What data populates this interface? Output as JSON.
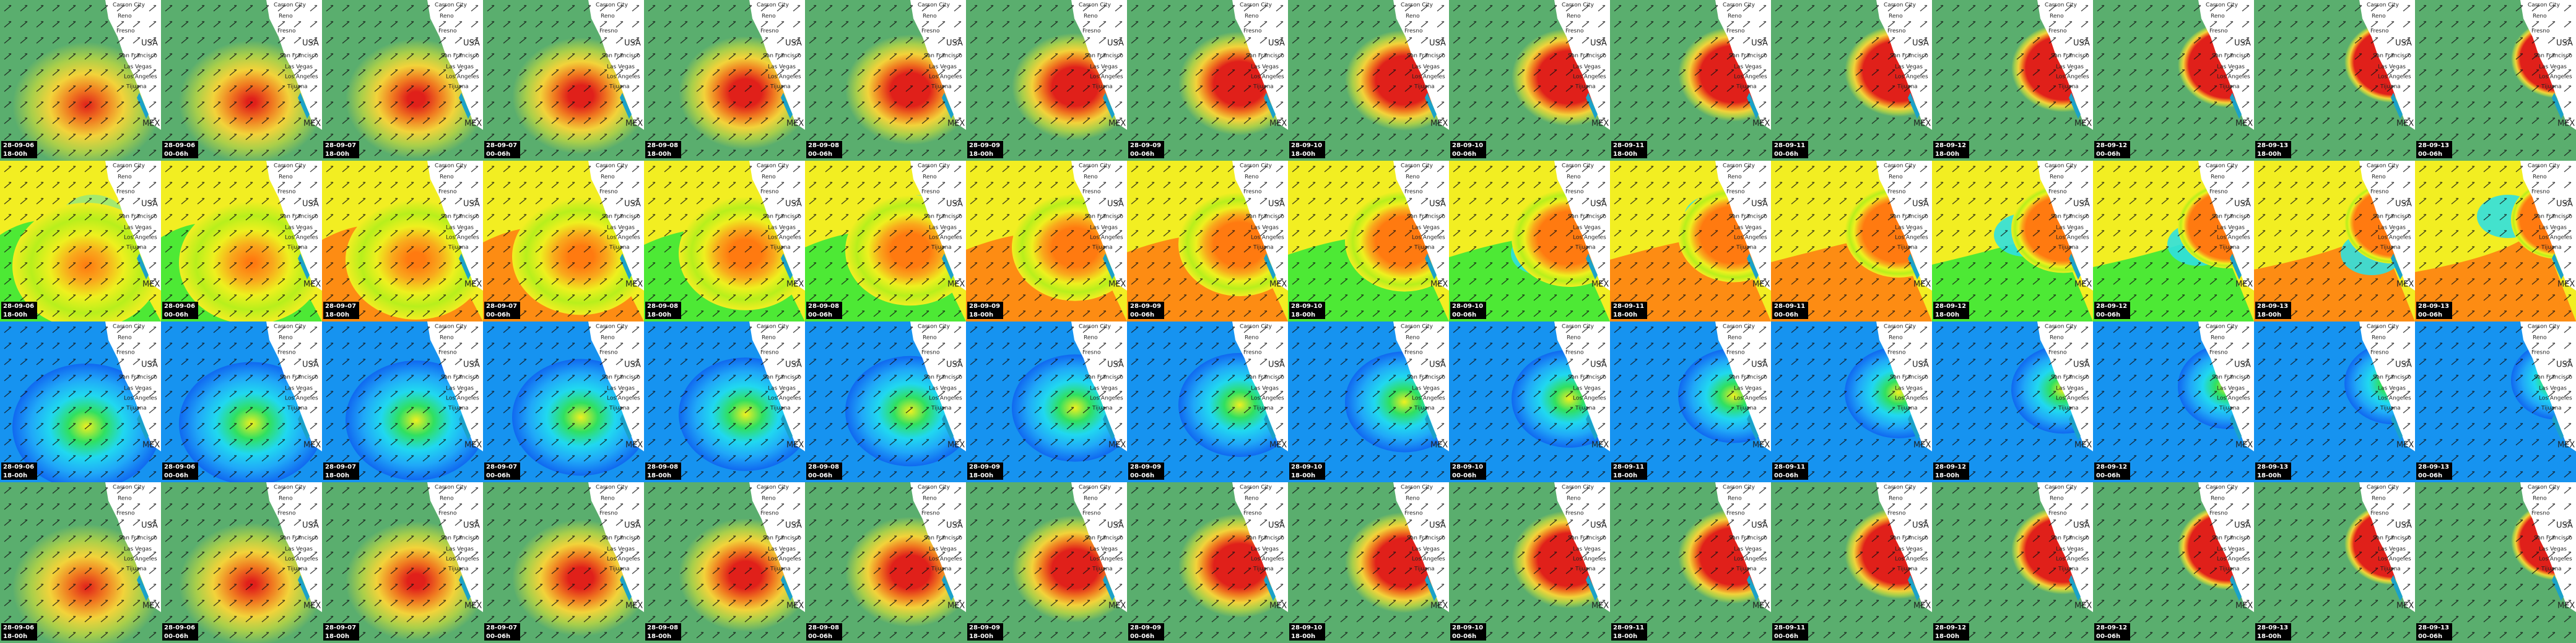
{
  "columns": [
    {
      "date": "28-09-06",
      "time": "18-00h"
    },
    {
      "date": "28-09-06",
      "time": "00-06h"
    },
    {
      "date": "28-09-07",
      "time": "18-00h"
    },
    {
      "date": "28-09-07",
      "time": "00-06h"
    },
    {
      "date": "28-09-08",
      "time": "18-00h"
    },
    {
      "date": "28-09-08",
      "time": "00-06h"
    },
    {
      "date": "28-09-09",
      "time": "18-00h"
    },
    {
      "date": "28-09-09",
      "time": "00-06h"
    },
    {
      "date": "28-09-10",
      "time": "18-00h"
    },
    {
      "date": "28-09-10",
      "time": "00-06h"
    },
    {
      "date": "28-09-11",
      "time": "18-00h"
    },
    {
      "date": "28-09-11",
      "time": "00-06h"
    },
    {
      "date": "28-09-12",
      "time": "18-00h"
    },
    {
      "date": "28-09-12",
      "time": "00-06h"
    },
    {
      "date": "28-09-13",
      "time": "18-00h"
    },
    {
      "date": "28-09-13",
      "time": "00-06h"
    }
  ],
  "map_labels": [
    "Carson City",
    "Reno",
    "Fresno",
    "USA",
    "San Francisco",
    "Las Vegas",
    "Los Angeles",
    "Tijuana",
    "MEX"
  ]
}
